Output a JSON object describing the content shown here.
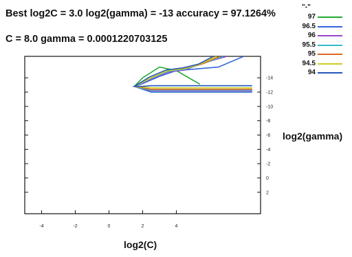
{
  "chart_data": {
    "type": "line",
    "title_line1": "Best log2C = 3.0 log2(gamma) = -13 accuracy = 97.1264%",
    "title_line2": "C = 8.0  gamma = 0.0001220703125",
    "xlabel": "log2(C)",
    "ylabel": "log2(gamma)",
    "x_ticks": [
      "-4",
      "-2",
      "0",
      "2",
      "4"
    ],
    "x_tick_values": [
      -4,
      -2,
      0,
      2,
      4
    ],
    "y_ticks": [
      "-14",
      "-12",
      "-10",
      "-8",
      "-6",
      "-4",
      "-2",
      "0",
      "2"
    ],
    "y_tick_values": [
      -14,
      -12,
      -10,
      -8,
      -6,
      -4,
      -2,
      0,
      2
    ],
    "xlim": [
      -5,
      9
    ],
    "ylim": [
      5,
      -17
    ],
    "legend_header": "\"-\"",
    "series": [
      {
        "name": "97",
        "color": "#22aa33",
        "x": [
          5.4,
          4.0,
          3.0,
          2.0,
          1.5,
          2.0,
          2.5,
          4.5,
          8.5
        ],
        "y": [
          -13.1,
          -15.0,
          -15.5,
          -14.0,
          -12.8,
          -12.5,
          -12.0,
          -12.0,
          -12.0
        ]
      },
      {
        "name": "96.5",
        "color": "#3366dd",
        "x": [
          8.0,
          6.5,
          5.0,
          4.0,
          3.0,
          2.0,
          1.5,
          2.0,
          2.5,
          4.5,
          8.5
        ],
        "y": [
          -17.0,
          -15.5,
          -15.2,
          -15.0,
          -14.2,
          -13.2,
          -12.8,
          -12.4,
          -12.0,
          -12.0,
          -12.0
        ]
      },
      {
        "name": "96",
        "color": "#9944cc",
        "x": [
          7.0,
          5.5,
          4.5,
          3.5,
          2.5,
          1.5,
          2.0,
          2.5,
          4.5,
          8.5
        ],
        "y": [
          -17.0,
          -16.0,
          -15.1,
          -14.8,
          -13.8,
          -12.8,
          -12.5,
          -12.2,
          -12.2,
          -12.2
        ]
      },
      {
        "name": "95.5",
        "color": "#33bbcc",
        "x": [
          6.8,
          5.5,
          4.5,
          3.5,
          2.5,
          1.5,
          2.0,
          2.5,
          4.5,
          8.5
        ],
        "y": [
          -17.0,
          -15.9,
          -15.2,
          -14.9,
          -13.9,
          -12.8,
          -12.5,
          -12.3,
          -12.3,
          -12.3
        ]
      },
      {
        "name": "95",
        "color": "#dd6622",
        "x": [
          6.6,
          5.5,
          4.5,
          3.5,
          2.5,
          1.5,
          2.0,
          2.5,
          4.5,
          8.5
        ],
        "y": [
          -17.0,
          -15.9,
          -15.3,
          -15.0,
          -14.0,
          -12.8,
          -12.6,
          -12.4,
          -12.4,
          -12.4
        ]
      },
      {
        "name": "94.5",
        "color": "#cccc22",
        "x": [
          6.4,
          5.4,
          4.5,
          3.5,
          2.5,
          1.5,
          2.0,
          2.5,
          4.5,
          8.5
        ],
        "y": [
          -17.0,
          -15.9,
          -15.3,
          -15.0,
          -14.0,
          -12.8,
          -12.7,
          -12.6,
          -12.6,
          -12.6
        ]
      },
      {
        "name": "94",
        "color": "#2255bb",
        "x": [
          6.2,
          5.3,
          4.4,
          3.4,
          2.4,
          1.5,
          2.0,
          2.5,
          4.5,
          8.5
        ],
        "y": [
          -17.0,
          -15.9,
          -15.4,
          -15.1,
          -14.1,
          -12.8,
          -12.8,
          -12.9,
          -12.9,
          -12.9
        ]
      }
    ]
  }
}
